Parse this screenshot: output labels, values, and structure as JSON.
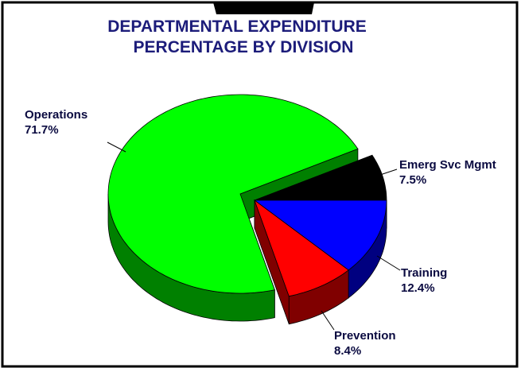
{
  "chart_data": {
    "type": "pie3d",
    "title": [
      "DEPARTMENTAL EXPENDITURE",
      "PERCENTAGE BY DIVISION"
    ],
    "categories": [
      "Emerg Svc Mgmt",
      "Training",
      "Prevention",
      "Operations"
    ],
    "values": [
      7.5,
      12.4,
      8.4,
      71.7
    ],
    "value_labels": [
      "7.5%",
      "12.4%",
      "8.4%",
      "71.7%"
    ],
    "colors": [
      "#000000",
      "#0000ff",
      "#ff0000",
      "#00ff00"
    ],
    "explode": [
      true,
      true,
      true,
      false
    ]
  }
}
